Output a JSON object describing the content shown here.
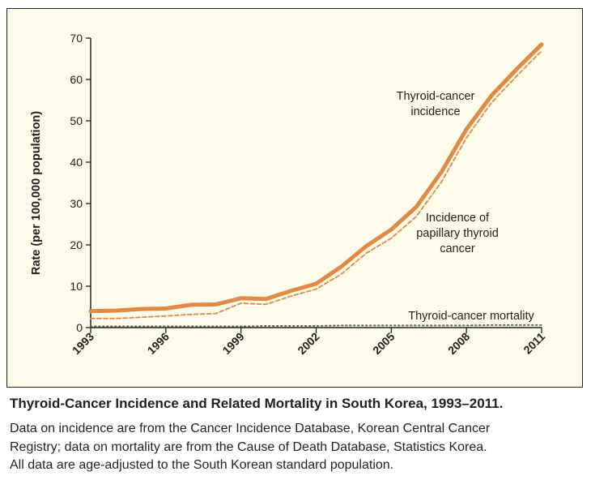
{
  "chart_data": {
    "type": "line",
    "title": "",
    "ylabel": "Rate (per 100,000 population)",
    "xlabel": "",
    "ylim": [
      0,
      70
    ],
    "xlim": [
      1993,
      2011
    ],
    "yticks": [
      0,
      10,
      20,
      30,
      40,
      50,
      60,
      70
    ],
    "xticks": [
      1993,
      1996,
      1999,
      2002,
      2005,
      2008,
      2011
    ],
    "grid": false,
    "x": [
      1993,
      1994,
      1995,
      1996,
      1997,
      1998,
      1999,
      2000,
      2001,
      2002,
      2003,
      2004,
      2005,
      2006,
      2007,
      2008,
      2009,
      2010,
      2011
    ],
    "series": [
      {
        "name": "Thyroid-cancer incidence",
        "style": "solid",
        "color": "#e08a45",
        "values": [
          4.0,
          4.1,
          4.5,
          4.6,
          5.5,
          5.6,
          7.1,
          6.9,
          8.9,
          10.6,
          14.7,
          19.7,
          23.7,
          29.2,
          37.6,
          48.0,
          56.1,
          62.5,
          68.5
        ]
      },
      {
        "name": "Incidence of papillary thyroid cancer",
        "style": "dashed",
        "color": "#e08a45",
        "values": [
          2.2,
          2.2,
          2.5,
          2.8,
          3.2,
          3.4,
          5.9,
          5.6,
          7.6,
          9.3,
          12.9,
          18.0,
          21.6,
          26.9,
          35.2,
          45.9,
          54.4,
          60.8,
          66.9
        ]
      },
      {
        "name": "Thyroid-cancer mortality",
        "style": "dotted",
        "color": "#5f6b55",
        "values": [
          0.3,
          0.3,
          0.3,
          0.3,
          0.3,
          0.3,
          0.3,
          0.4,
          0.4,
          0.4,
          0.5,
          0.5,
          0.5,
          0.5,
          0.5,
          0.5,
          0.6,
          0.6,
          0.6
        ]
      }
    ],
    "annotations": [
      {
        "lines": [
          "Thyroid-cancer",
          "incidence"
        ]
      },
      {
        "lines": [
          "Incidence of",
          "papillary thyroid",
          "cancer"
        ]
      },
      {
        "lines": [
          "Thyroid-cancer mortality"
        ]
      }
    ],
    "background_color": "#fdfbea",
    "axis_color": "#231f20"
  },
  "caption": {
    "title": "Thyroid-Cancer Incidence and Related Mortality in South Korea, 1993–2011.",
    "lines": [
      "Data on incidence are from the Cancer Incidence Database, Korean Central Cancer",
      "Registry; data on mortality are from the Cause of Death Database, Statistics Korea.",
      "All data are age-adjusted to the South Korean standard population."
    ]
  }
}
